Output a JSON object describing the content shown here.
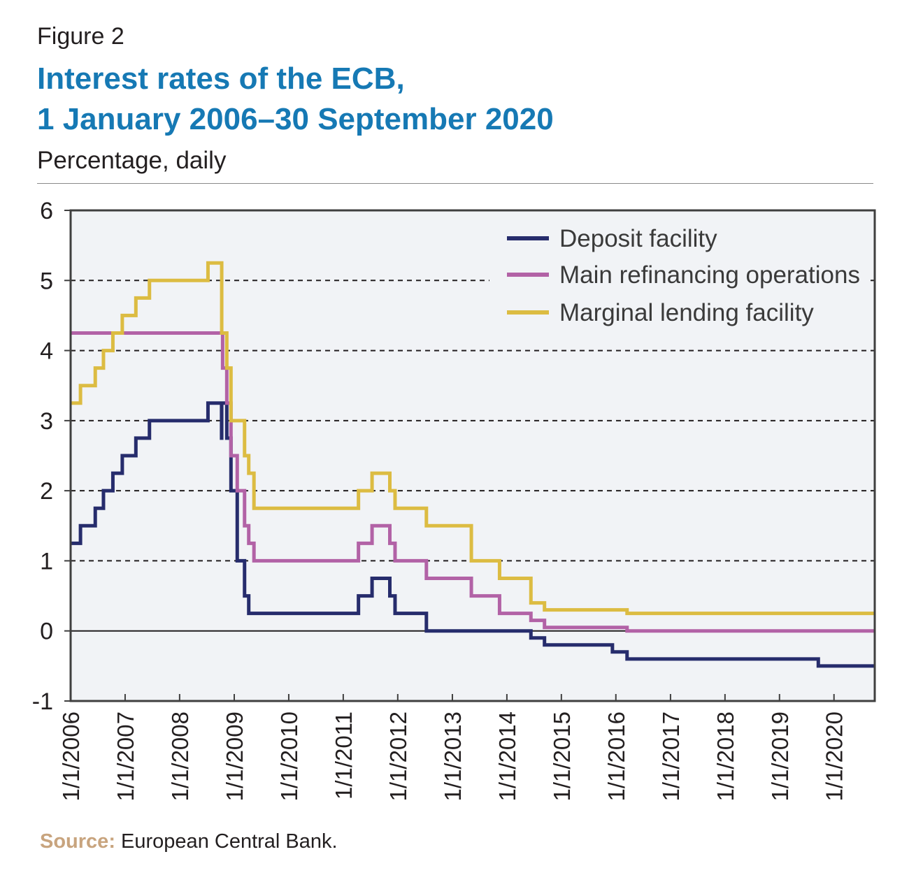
{
  "figure_label": "Figure 2",
  "title_lines": [
    "Interest rates of the ECB,",
    "1 January 2006–30 September 2020"
  ],
  "subtitle": "Percentage, daily",
  "source": {
    "label": "Source:",
    "text": "European Central Bank."
  },
  "colors": {
    "title": "#1679b4",
    "deposit": "#262c6c",
    "mro": "#b262a6",
    "marginal": "#dcbc42",
    "plot_bg": "#f1f3f6",
    "source_label": "#c8a47e"
  },
  "chart_data": {
    "type": "line",
    "step": true,
    "x_start": "1/1/2006",
    "x_end": "30/9/2020",
    "ylim": [
      -1,
      6
    ],
    "yticks": [
      -1,
      0,
      1,
      2,
      3,
      4,
      5,
      6
    ],
    "xticks": [
      "1/1/2006",
      "1/1/2007",
      "1/1/2008",
      "1/1/2009",
      "1/1/2010",
      "1/1/2011",
      "1/1/2012",
      "1/1/2013",
      "1/1/2014",
      "1/1/2015",
      "1/1/2016",
      "1/1/2017",
      "1/1/2018",
      "1/1/2019",
      "1/1/2020"
    ],
    "grid": "horizontal dashed",
    "legend_position": "top-right",
    "series": [
      {
        "name": "Deposit facility",
        "color": "#262c6c",
        "points": [
          [
            "2006-01-01",
            1.25
          ],
          [
            "2006-03-08",
            1.5
          ],
          [
            "2006-06-15",
            1.75
          ],
          [
            "2006-08-09",
            2.0
          ],
          [
            "2006-10-11",
            2.25
          ],
          [
            "2006-12-13",
            2.5
          ],
          [
            "2007-03-14",
            2.75
          ],
          [
            "2007-06-13",
            3.0
          ],
          [
            "2008-07-09",
            3.25
          ],
          [
            "2008-10-08",
            2.75
          ],
          [
            "2008-10-09",
            3.25
          ],
          [
            "2008-11-12",
            2.75
          ],
          [
            "2008-12-10",
            2.0
          ],
          [
            "2009-01-21",
            1.0
          ],
          [
            "2009-03-11",
            0.5
          ],
          [
            "2009-04-08",
            0.25
          ],
          [
            "2011-04-13",
            0.5
          ],
          [
            "2011-07-13",
            0.75
          ],
          [
            "2011-11-09",
            0.5
          ],
          [
            "2011-12-14",
            0.25
          ],
          [
            "2012-07-11",
            0.0
          ],
          [
            "2014-06-11",
            -0.1
          ],
          [
            "2014-09-10",
            -0.2
          ],
          [
            "2015-12-09",
            -0.3
          ],
          [
            "2016-03-16",
            -0.4
          ],
          [
            "2019-09-18",
            -0.5
          ],
          [
            "2020-09-30",
            -0.5
          ]
        ]
      },
      {
        "name": "Main refinancing operations",
        "color": "#b262a6",
        "points": [
          [
            "2006-01-01",
            4.25
          ],
          [
            "2008-10-15",
            3.75
          ],
          [
            "2008-11-12",
            3.25
          ],
          [
            "2008-12-10",
            2.5
          ],
          [
            "2009-01-21",
            2.0
          ],
          [
            "2009-03-11",
            1.5
          ],
          [
            "2009-04-08",
            1.25
          ],
          [
            "2009-05-13",
            1.0
          ],
          [
            "2011-04-13",
            1.25
          ],
          [
            "2011-07-13",
            1.5
          ],
          [
            "2011-11-09",
            1.25
          ],
          [
            "2011-12-14",
            1.0
          ],
          [
            "2012-07-11",
            0.75
          ],
          [
            "2013-05-08",
            0.5
          ],
          [
            "2013-11-13",
            0.25
          ],
          [
            "2014-06-11",
            0.15
          ],
          [
            "2014-09-10",
            0.05
          ],
          [
            "2016-03-16",
            0.0
          ],
          [
            "2020-09-30",
            0.0
          ]
        ]
      },
      {
        "name": "Marginal lending facility",
        "color": "#dcbc42",
        "points": [
          [
            "2006-01-01",
            3.25
          ],
          [
            "2006-03-08",
            3.5
          ],
          [
            "2006-06-15",
            3.75
          ],
          [
            "2006-08-09",
            4.0
          ],
          [
            "2006-10-11",
            4.25
          ],
          [
            "2006-12-13",
            4.5
          ],
          [
            "2007-03-14",
            4.75
          ],
          [
            "2007-06-13",
            5.0
          ],
          [
            "2008-07-09",
            5.25
          ],
          [
            "2008-10-09",
            4.25
          ],
          [
            "2008-11-12",
            3.75
          ],
          [
            "2008-12-10",
            3.0
          ],
          [
            "2009-03-11",
            2.5
          ],
          [
            "2009-04-08",
            2.25
          ],
          [
            "2009-05-13",
            1.75
          ],
          [
            "2011-04-13",
            2.0
          ],
          [
            "2011-07-13",
            2.25
          ],
          [
            "2011-11-09",
            2.0
          ],
          [
            "2011-12-14",
            1.75
          ],
          [
            "2012-07-11",
            1.5
          ],
          [
            "2013-05-08",
            1.0
          ],
          [
            "2013-11-13",
            0.75
          ],
          [
            "2014-06-11",
            0.4
          ],
          [
            "2014-09-10",
            0.3
          ],
          [
            "2016-03-16",
            0.25
          ],
          [
            "2020-09-30",
            0.25
          ]
        ]
      }
    ]
  }
}
